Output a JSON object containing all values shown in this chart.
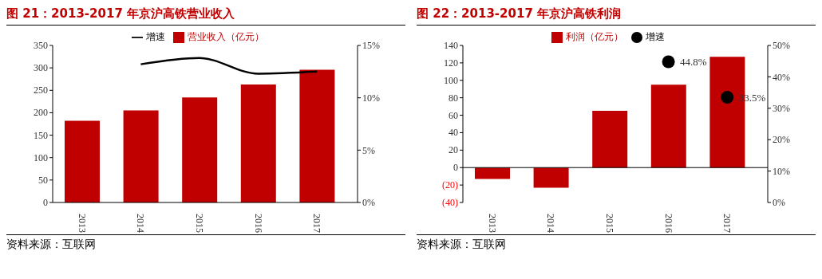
{
  "chart_data": [
    {
      "type": "bar",
      "title": "图 21：2013-2017 年京沪高铁营业收入",
      "categories": [
        "2013",
        "2014",
        "2015",
        "2016",
        "2017"
      ],
      "series": [
        {
          "name": "营业收入（亿元）",
          "color": "#c00000",
          "values": [
            182,
            205,
            234,
            263,
            296
          ]
        },
        {
          "name": "增速",
          "type": "line",
          "axis": "y2",
          "color": "#000000",
          "values": [
            null,
            13.2,
            13.8,
            12.3,
            12.5
          ]
        }
      ],
      "ylim": [
        0,
        350
      ],
      "yticks": [
        0,
        50,
        100,
        150,
        200,
        250,
        300,
        350
      ],
      "y2lim": [
        0,
        15
      ],
      "y2ticks": [
        {
          "value": 0,
          "label": "0%"
        },
        {
          "value": 5,
          "label": "5%"
        },
        {
          "value": 10,
          "label": "10%"
        },
        {
          "value": 15,
          "label": "15%"
        }
      ],
      "legend": "top",
      "grid": false,
      "marker": "none",
      "annotations": [
        "资料来源：互联网"
      ]
    },
    {
      "type": "bar",
      "title": "图 22：2013-2017 年京沪高铁利润",
      "categories": [
        "2013",
        "2014",
        "2015",
        "2016",
        "2017"
      ],
      "series": [
        {
          "name": "利润（亿元）",
          "color": "#c00000",
          "values": [
            -13,
            -23,
            65,
            95,
            127
          ]
        },
        {
          "name": "增速",
          "type": "scatter",
          "axis": "y2",
          "color": "#000000",
          "values": [
            null,
            null,
            null,
            44.8,
            33.5
          ],
          "value_labels": [
            null,
            null,
            null,
            "44.8%",
            "33.5%"
          ]
        }
      ],
      "ref_lines": [
        {
          "axis": "y",
          "value": 0
        }
      ],
      "ylim": [
        -40,
        140
      ],
      "yticks": [
        {
          "value": -40,
          "label": "(40)"
        },
        {
          "value": -20,
          "label": "(20)"
        },
        0,
        20,
        40,
        60,
        80,
        100,
        120,
        140
      ],
      "y2lim": [
        0,
        50
      ],
      "y2ticks": [
        {
          "value": 0,
          "label": "0%"
        },
        {
          "value": 10,
          "label": "10%"
        },
        {
          "value": 20,
          "label": "20%"
        },
        {
          "value": 30,
          "label": "30%"
        },
        {
          "value": 40,
          "label": "40%"
        },
        {
          "value": 50,
          "label": "50%"
        }
      ],
      "legend": "top",
      "grid": false,
      "marker": "circle",
      "annotations": [
        "资料来源：互联网"
      ]
    }
  ]
}
